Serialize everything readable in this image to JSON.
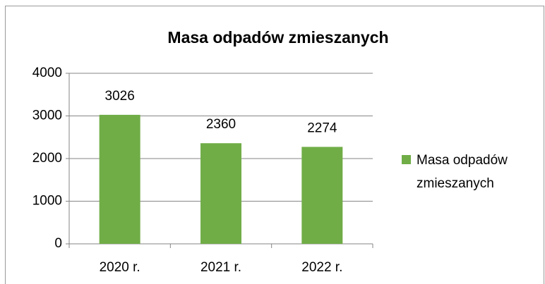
{
  "chart_data": {
    "type": "bar",
    "title": "Masa odpadów zmieszanych",
    "categories": [
      "2020 r.",
      "2021 r.",
      "2022 r."
    ],
    "series": [
      {
        "name": "Masa odpadów zmieszanych",
        "color": "#70ad47",
        "values": [
          3026,
          2360,
          2274
        ]
      }
    ],
    "ylim": [
      0,
      4000
    ],
    "yticks": [
      0,
      1000,
      2000,
      3000,
      4000
    ],
    "grid": true,
    "legend": "right"
  }
}
